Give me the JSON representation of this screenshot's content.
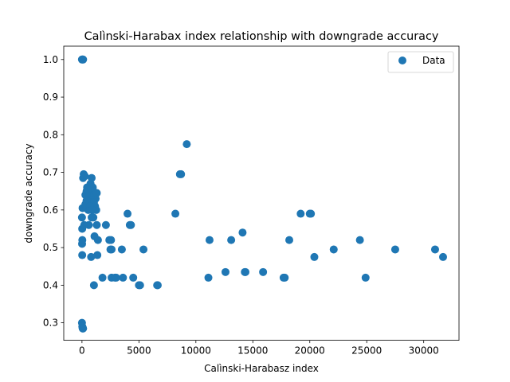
{
  "chart_data": {
    "type": "scatter",
    "title": "Calìnski-Harabax index relationship with downgrade accuracy",
    "xlabel": "Calìnski-Harabasz index",
    "ylabel": "downgrade accuracy",
    "xlim": [
      -1600,
      33100
    ],
    "ylim": [
      0.2535,
      1.0355
    ],
    "xticks": [
      0,
      5000,
      10000,
      15000,
      20000,
      25000,
      30000
    ],
    "xtick_labels": [
      "0",
      "5000",
      "10000",
      "15000",
      "20000",
      "25000",
      "30000"
    ],
    "yticks": [
      0.3,
      0.4,
      0.5,
      0.6,
      0.7,
      0.8,
      0.9,
      1.0
    ],
    "ytick_labels": [
      "0.3",
      "0.4",
      "0.5",
      "0.6",
      "0.7",
      "0.8",
      "0.9",
      "1.0"
    ],
    "grid": false,
    "legend_position": "top-right",
    "series": [
      {
        "name": "Data",
        "color": "#1f77b4",
        "points": [
          [
            0,
            1.0
          ],
          [
            50,
            1.0
          ],
          [
            100,
            1.0
          ],
          [
            0,
            0.3
          ],
          [
            30,
            0.29
          ],
          [
            60,
            0.285
          ],
          [
            100,
            0.285
          ],
          [
            0,
            0.58
          ],
          [
            20,
            0.55
          ],
          [
            30,
            0.52
          ],
          [
            10,
            0.51
          ],
          [
            20,
            0.48
          ],
          [
            50,
            0.605
          ],
          [
            150,
            0.695
          ],
          [
            250,
            0.69
          ],
          [
            100,
            0.685
          ],
          [
            400,
            0.65
          ],
          [
            300,
            0.64
          ],
          [
            500,
            0.63
          ],
          [
            600,
            0.62
          ],
          [
            350,
            0.61
          ],
          [
            450,
            0.66
          ],
          [
            700,
            0.655
          ],
          [
            800,
            0.645
          ],
          [
            900,
            0.63
          ],
          [
            550,
            0.6
          ],
          [
            650,
            0.64
          ],
          [
            750,
            0.67
          ],
          [
            850,
            0.685
          ],
          [
            950,
            0.66
          ],
          [
            1000,
            0.65
          ],
          [
            1100,
            0.64
          ],
          [
            1200,
            0.63
          ],
          [
            1050,
            0.62
          ],
          [
            1150,
            0.61
          ],
          [
            1250,
            0.6
          ],
          [
            1300,
            0.645
          ],
          [
            600,
            0.56
          ],
          [
            200,
            0.56
          ],
          [
            400,
            0.625
          ],
          [
            500,
            0.655
          ],
          [
            300,
            0.615
          ],
          [
            700,
            0.61
          ],
          [
            900,
            0.6
          ],
          [
            1000,
            0.58
          ],
          [
            850,
            0.58
          ],
          [
            1100,
            0.53
          ],
          [
            1300,
            0.56
          ],
          [
            1400,
            0.52
          ],
          [
            1350,
            0.48
          ],
          [
            800,
            0.475
          ],
          [
            1050,
            0.4
          ],
          [
            1800,
            0.42
          ],
          [
            2100,
            0.56
          ],
          [
            2400,
            0.52
          ],
          [
            2550,
            0.52
          ],
          [
            2500,
            0.495
          ],
          [
            2600,
            0.495
          ],
          [
            2600,
            0.42
          ],
          [
            2900,
            0.42
          ],
          [
            3000,
            0.42
          ],
          [
            3500,
            0.495
          ],
          [
            3600,
            0.42
          ],
          [
            4000,
            0.59
          ],
          [
            4200,
            0.56
          ],
          [
            4300,
            0.56
          ],
          [
            4500,
            0.42
          ],
          [
            5000,
            0.4
          ],
          [
            5100,
            0.4
          ],
          [
            5400,
            0.495
          ],
          [
            6600,
            0.4
          ],
          [
            6650,
            0.4
          ],
          [
            8200,
            0.59
          ],
          [
            8600,
            0.695
          ],
          [
            8700,
            0.695
          ],
          [
            9200,
            0.775
          ],
          [
            11100,
            0.42
          ],
          [
            11200,
            0.52
          ],
          [
            12600,
            0.435
          ],
          [
            13100,
            0.52
          ],
          [
            14100,
            0.54
          ],
          [
            14300,
            0.435
          ],
          [
            14350,
            0.435
          ],
          [
            15900,
            0.435
          ],
          [
            17700,
            0.42
          ],
          [
            17800,
            0.42
          ],
          [
            18200,
            0.52
          ],
          [
            19200,
            0.59
          ],
          [
            20000,
            0.59
          ],
          [
            20100,
            0.59
          ],
          [
            20400,
            0.475
          ],
          [
            22100,
            0.495
          ],
          [
            24400,
            0.52
          ],
          [
            24900,
            0.42
          ],
          [
            27500,
            0.495
          ],
          [
            31000,
            0.495
          ],
          [
            31700,
            0.475
          ]
        ]
      }
    ]
  }
}
